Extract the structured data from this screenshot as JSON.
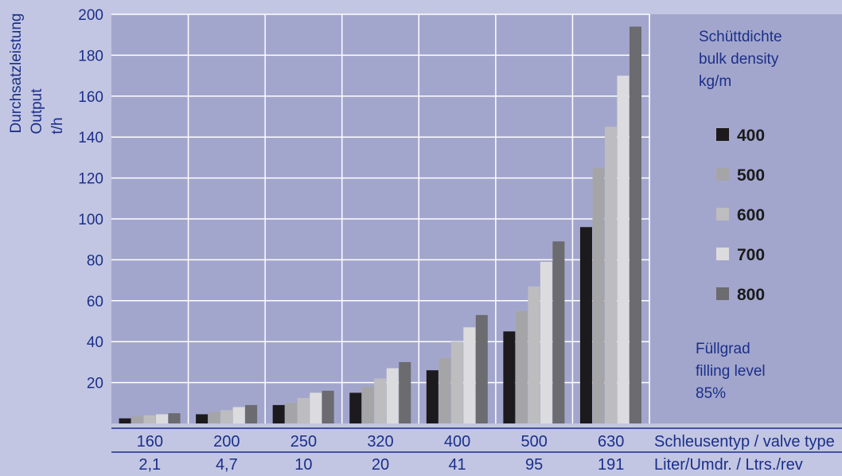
{
  "chart_data": {
    "type": "bar",
    "ylabel_lines": [
      "Durchsatzleistung",
      "Output",
      "t/h"
    ],
    "ylim": [
      0,
      200
    ],
    "yticks": [
      20,
      40,
      60,
      80,
      100,
      120,
      140,
      160,
      180,
      200
    ],
    "grid": true,
    "categories": [
      "160",
      "200",
      "250",
      "320",
      "400",
      "500",
      "630"
    ],
    "categories2": [
      "2,1",
      "4,7",
      "10",
      "20",
      "41",
      "95",
      "191"
    ],
    "xlabel": "Schleusentyp / valve type",
    "xlabel2": "Liter/Umdr. / Ltrs./rev",
    "legend_title_lines": [
      "Schüttdichte",
      "bulk density",
      "kg/m"
    ],
    "legend_placement": "right",
    "series": [
      {
        "name": "400",
        "color": "#1c1a1d",
        "values": [
          2.5,
          4.5,
          9,
          15,
          26,
          45,
          96
        ]
      },
      {
        "name": "500",
        "color": "#a5a5a8",
        "values": [
          3.5,
          5.5,
          10,
          18,
          32,
          55,
          125
        ]
      },
      {
        "name": "600",
        "color": "#bdbdbf",
        "values": [
          4,
          6.5,
          12.5,
          22,
          40,
          67,
          145
        ]
      },
      {
        "name": "700",
        "color": "#dcdcde",
        "values": [
          4.5,
          8,
          15,
          27,
          47,
          79,
          170
        ]
      },
      {
        "name": "800",
        "color": "#6b6b70",
        "values": [
          5,
          9,
          16,
          30,
          53,
          89,
          194
        ]
      }
    ],
    "annotation_lines": [
      "Füllgrad",
      "filling level",
      "85%"
    ]
  }
}
